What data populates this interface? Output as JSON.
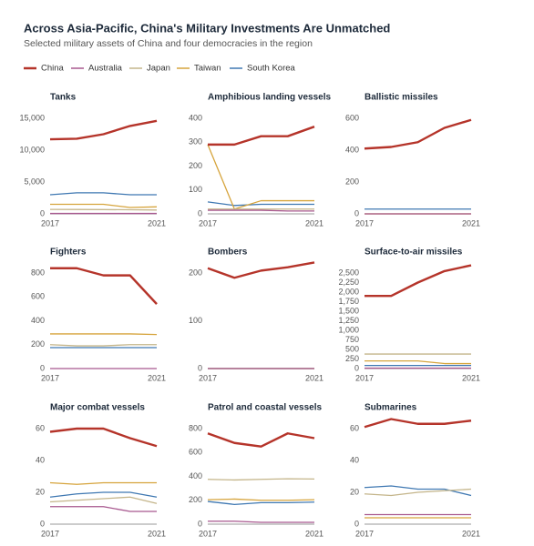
{
  "title": "Across Asia-Pacific, China's Military Investments Are Unmatched",
  "subtitle": "Selected military assets of China and four democracies in the region",
  "chart_data": [
    {
      "type": "line",
      "title": "Tanks",
      "categories": [
        "2017",
        null,
        null,
        null,
        "2021"
      ],
      "ylim": [
        0,
        15000
      ],
      "yticks": [
        0,
        {
          "value": 5000,
          "label": "5,000"
        },
        {
          "value": 10000,
          "label": "10,000"
        },
        {
          "value": 15000,
          "label": "15,000"
        }
      ],
      "series": [
        {
          "name": "China",
          "color": "#b5342a",
          "values": [
            11700,
            11800,
            12500,
            13800,
            14600
          ]
        },
        {
          "name": "Australia",
          "color": "#a8588f",
          "values": [
            59,
            59,
            59,
            59,
            59
          ]
        },
        {
          "name": "Japan",
          "color": "#c4b58a",
          "values": [
            700,
            690,
            670,
            640,
            600
          ]
        },
        {
          "name": "Taiwan",
          "color": "#d6a43c",
          "values": [
            1500,
            1500,
            1500,
            1000,
            1100
          ]
        },
        {
          "name": "South Korea",
          "color": "#3f78b2",
          "values": [
            3000,
            3300,
            3300,
            3000,
            3000
          ]
        }
      ]
    },
    {
      "type": "line",
      "title": "Amphibious landing vessels",
      "categories": [
        "2017",
        null,
        null,
        null,
        "2021"
      ],
      "ylim": [
        0,
        400
      ],
      "yticks": [
        0,
        100,
        200,
        300,
        400
      ],
      "series": [
        {
          "name": "China",
          "color": "#b5342a",
          "values": [
            290,
            290,
            325,
            325,
            365
          ]
        },
        {
          "name": "Australia",
          "color": "#a8588f",
          "values": [
            15,
            15,
            15,
            12,
            12
          ]
        },
        {
          "name": "Japan",
          "color": "#c4b58a",
          "values": [
            20,
            20,
            20,
            20,
            20
          ]
        },
        {
          "name": "Taiwan",
          "color": "#d6a43c",
          "values": [
            290,
            20,
            55,
            55,
            55
          ]
        },
        {
          "name": "South Korea",
          "color": "#3f78b2",
          "values": [
            50,
            35,
            40,
            40,
            40
          ]
        }
      ]
    },
    {
      "type": "line",
      "title": "Ballistic missiles",
      "categories": [
        "2017",
        null,
        null,
        null,
        "2021"
      ],
      "ylim": [
        0,
        600
      ],
      "yticks": [
        0,
        200,
        400,
        600
      ],
      "series": [
        {
          "name": "China",
          "color": "#b5342a",
          "values": [
            410,
            420,
            450,
            540,
            590
          ]
        },
        {
          "name": "Australia",
          "color": "#a8588f",
          "values": [
            0,
            0,
            0,
            0,
            0
          ]
        },
        {
          "name": "Japan",
          "color": "#c4b58a",
          "values": [
            0,
            0,
            0,
            0,
            0
          ]
        },
        {
          "name": "Taiwan",
          "color": "#d6a43c",
          "values": [
            0,
            0,
            0,
            0,
            0
          ]
        },
        {
          "name": "South Korea",
          "color": "#3f78b2",
          "values": [
            30,
            30,
            30,
            30,
            30
          ]
        }
      ]
    },
    {
      "type": "line",
      "title": "Fighters",
      "categories": [
        "2017",
        null,
        null,
        null,
        "2021"
      ],
      "ylim": [
        0,
        800
      ],
      "yticks": [
        0,
        200,
        400,
        600,
        800
      ],
      "series": [
        {
          "name": "China",
          "color": "#b5342a",
          "values": [
            840,
            840,
            780,
            780,
            540
          ]
        },
        {
          "name": "Australia",
          "color": "#a8588f",
          "values": [
            0,
            0,
            0,
            0,
            0
          ]
        },
        {
          "name": "Japan",
          "color": "#c4b58a",
          "values": [
            200,
            190,
            190,
            200,
            200
          ]
        },
        {
          "name": "Taiwan",
          "color": "#d6a43c",
          "values": [
            290,
            290,
            290,
            290,
            285
          ]
        },
        {
          "name": "South Korea",
          "color": "#3f78b2",
          "values": [
            175,
            175,
            175,
            175,
            175
          ]
        }
      ]
    },
    {
      "type": "line",
      "title": "Bombers",
      "categories": [
        "2017",
        null,
        null,
        null,
        "2021"
      ],
      "ylim": [
        0,
        200
      ],
      "yticks": [
        0,
        100,
        200
      ],
      "series": [
        {
          "name": "China",
          "color": "#b5342a",
          "values": [
            210,
            190,
            205,
            212,
            222
          ]
        },
        {
          "name": "Australia",
          "color": "#a8588f",
          "values": [
            0,
            0,
            0,
            0,
            0
          ]
        },
        {
          "name": "Japan",
          "color": "#c4b58a",
          "values": [
            0,
            0,
            0,
            0,
            0
          ]
        },
        {
          "name": "Taiwan",
          "color": "#d6a43c",
          "values": [
            0,
            0,
            0,
            0,
            0
          ]
        },
        {
          "name": "South Korea",
          "color": "#3f78b2",
          "values": [
            0,
            0,
            0,
            0,
            0
          ]
        }
      ]
    },
    {
      "type": "line",
      "title": "Surface-to-air missiles",
      "categories": [
        "2017",
        null,
        null,
        null,
        "2021"
      ],
      "ylim": [
        0,
        2500
      ],
      "yticks": [
        0,
        250,
        500,
        750,
        {
          "value": 1000,
          "label": "1,000"
        },
        {
          "value": 1250,
          "label": "1,250"
        },
        {
          "value": 1500,
          "label": "1,500"
        },
        {
          "value": 1750,
          "label": "1,750"
        },
        {
          "value": 2000,
          "label": "2,000"
        },
        {
          "value": 2250,
          "label": "2,250"
        },
        {
          "value": 2500,
          "label": "2,500"
        }
      ],
      "series": [
        {
          "name": "China",
          "color": "#b5342a",
          "values": [
            1900,
            1900,
            2250,
            2550,
            2700
          ]
        },
        {
          "name": "Australia",
          "color": "#a8588f",
          "values": [
            10,
            10,
            10,
            10,
            10
          ]
        },
        {
          "name": "Japan",
          "color": "#c4b58a",
          "values": [
            380,
            380,
            380,
            380,
            380
          ]
        },
        {
          "name": "Taiwan",
          "color": "#d6a43c",
          "values": [
            200,
            200,
            200,
            130,
            130
          ]
        },
        {
          "name": "South Korea",
          "color": "#3f78b2",
          "values": [
            80,
            80,
            80,
            80,
            80
          ]
        }
      ]
    },
    {
      "type": "line",
      "title": "Major combat vessels",
      "categories": [
        "2017",
        null,
        null,
        null,
        "2021"
      ],
      "ylim": [
        0,
        60
      ],
      "yticks": [
        0,
        20,
        40,
        60
      ],
      "series": [
        {
          "name": "China",
          "color": "#b5342a",
          "values": [
            58,
            60,
            60,
            54,
            49
          ]
        },
        {
          "name": "Australia",
          "color": "#a8588f",
          "values": [
            11,
            11,
            11,
            8,
            8
          ]
        },
        {
          "name": "Japan",
          "color": "#c4b58a",
          "values": [
            14,
            15,
            16,
            17,
            13
          ]
        },
        {
          "name": "Taiwan",
          "color": "#d6a43c",
          "values": [
            26,
            25,
            26,
            26,
            26
          ]
        },
        {
          "name": "South Korea",
          "color": "#3f78b2",
          "values": [
            17,
            19,
            20,
            20,
            17
          ]
        }
      ]
    },
    {
      "type": "line",
      "title": "Patrol and coastal vessels",
      "categories": [
        "2017",
        null,
        null,
        null,
        "2021"
      ],
      "ylim": [
        0,
        800
      ],
      "yticks": [
        0,
        200,
        400,
        600,
        800
      ],
      "series": [
        {
          "name": "China",
          "color": "#b5342a",
          "values": [
            760,
            680,
            650,
            760,
            720
          ]
        },
        {
          "name": "Australia",
          "color": "#a8588f",
          "values": [
            25,
            25,
            15,
            15,
            15
          ]
        },
        {
          "name": "Japan",
          "color": "#c4b58a",
          "values": [
            375,
            370,
            375,
            380,
            378
          ]
        },
        {
          "name": "Taiwan",
          "color": "#d6a43c",
          "values": [
            205,
            210,
            200,
            200,
            205
          ]
        },
        {
          "name": "South Korea",
          "color": "#3f78b2",
          "values": [
            190,
            165,
            180,
            180,
            185
          ]
        }
      ]
    },
    {
      "type": "line",
      "title": "Submarines",
      "categories": [
        "2017",
        null,
        null,
        null,
        "2021"
      ],
      "ylim": [
        0,
        60
      ],
      "yticks": [
        0,
        20,
        40,
        60
      ],
      "series": [
        {
          "name": "China",
          "color": "#b5342a",
          "values": [
            61,
            66,
            63,
            63,
            65
          ]
        },
        {
          "name": "Australia",
          "color": "#a8588f",
          "values": [
            6,
            6,
            6,
            6,
            6
          ]
        },
        {
          "name": "Japan",
          "color": "#c4b58a",
          "values": [
            19,
            18,
            20,
            21,
            22
          ]
        },
        {
          "name": "Taiwan",
          "color": "#d6a43c",
          "values": [
            4,
            4,
            4,
            4,
            4
          ]
        },
        {
          "name": "South Korea",
          "color": "#3f78b2",
          "values": [
            23,
            24,
            22,
            22,
            18
          ]
        }
      ]
    }
  ]
}
